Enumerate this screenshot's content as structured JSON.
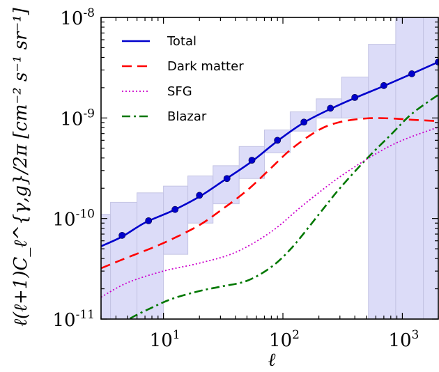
{
  "chart_data": {
    "type": "line",
    "xscale": "log",
    "yscale": "log",
    "xlim": [
      3,
      2000
    ],
    "ylim": [
      1e-11,
      1e-08
    ],
    "xlabel": "ℓ",
    "ylabel": "ℓ(ℓ+1)C_ℓ^{γ,g}/2π [cm⁻² s⁻¹ sr⁻¹]",
    "x_ticks": [
      {
        "base": "10",
        "exp": "1",
        "value": 10
      },
      {
        "base": "10",
        "exp": "2",
        "value": 100
      },
      {
        "base": "10",
        "exp": "3",
        "value": 1000
      }
    ],
    "y_ticks": [
      {
        "base": "10",
        "exp": "-11",
        "value": 1e-11
      },
      {
        "base": "10",
        "exp": "-10",
        "value": 1e-10
      },
      {
        "base": "10",
        "exp": "-9",
        "value": 1e-09
      },
      {
        "base": "10",
        "exp": "-8",
        "value": 1e-08
      }
    ],
    "legend_position": "top-left",
    "grid": false,
    "colors": {
      "total": "#0000cc",
      "dark_matter": "#ff0000",
      "sfg": "#cc00cc",
      "blazar": "#007700",
      "band": "#dcdcf8"
    },
    "series": [
      {
        "name": "Total",
        "style": "solid",
        "x": [
          3,
          4.5,
          7,
          12,
          20,
          33,
          55,
          90,
          150,
          250,
          400,
          700,
          1200,
          2000
        ],
        "y": [
          5.3e-11,
          6.6e-11,
          9.1e-11,
          1.2e-10,
          1.65e-10,
          2.45e-10,
          3.7e-10,
          5.9e-10,
          9e-10,
          1.23e-09,
          1.58e-09,
          2.08e-09,
          2.75e-09,
          3.6e-09
        ]
      },
      {
        "name": "Dark matter",
        "style": "dashed",
        "x": [
          3,
          5,
          8,
          12,
          20,
          30,
          50,
          80,
          120,
          200,
          300,
          500,
          800,
          1200,
          2000
        ],
        "y": [
          3.2e-11,
          4.1e-11,
          5.1e-11,
          6.3e-11,
          8.6e-11,
          1.2e-10,
          1.9e-10,
          3.2e-10,
          5e-10,
          7.6e-10,
          9.1e-10,
          9.9e-10,
          9.9e-10,
          9.6e-10,
          9.3e-10
        ]
      },
      {
        "name": "SFG",
        "style": "dotted",
        "x": [
          3,
          5,
          10,
          20,
          40,
          80,
          150,
          300,
          600,
          1000,
          2000
        ],
        "y": [
          1.65e-11,
          2.3e-11,
          3e-11,
          3.6e-11,
          4.6e-11,
          7.4e-11,
          1.38e-10,
          2.6e-10,
          4.4e-10,
          6e-10,
          8.1e-10
        ]
      },
      {
        "name": "Blazar",
        "style": "dashdot",
        "x": [
          3,
          5,
          8,
          12,
          20,
          30,
          50,
          80,
          120,
          200,
          300,
          500,
          800,
          1200,
          2000
        ],
        "y": [
          6.5e-12,
          9.8e-12,
          1.3e-11,
          1.6e-11,
          1.9e-11,
          2.1e-11,
          2.4e-11,
          3.3e-11,
          5.2e-11,
          1.1e-10,
          2e-10,
          3.9e-10,
          6.8e-10,
          1.1e-09,
          1.7e-09
        ]
      }
    ],
    "total_markers": {
      "x": [
        4.5,
        7.5,
        12.5,
        20,
        34,
        55,
        90,
        150,
        250,
        400,
        700,
        1200,
        2000
      ],
      "y": [
        6.8e-11,
        9.5e-11,
        1.23e-10,
        1.7e-10,
        2.5e-10,
        3.8e-10,
        6e-10,
        9.1e-10,
        1.25e-09,
        1.6e-09,
        2.1e-09,
        2.75e-09,
        3.6e-09
      ]
    },
    "error_band": [
      {
        "x0": 3.0,
        "x1": 3.6,
        "y0": 1e-11,
        "y1": 1.1e-10
      },
      {
        "x0": 3.6,
        "x1": 6,
        "y0": 1e-11,
        "y1": 1.45e-10
      },
      {
        "x0": 6,
        "x1": 10,
        "y0": 1e-11,
        "y1": 1.8e-10
      },
      {
        "x0": 10,
        "x1": 16,
        "y0": 4.4e-11,
        "y1": 2.1e-10
      },
      {
        "x0": 16,
        "x1": 26,
        "y0": 9e-11,
        "y1": 2.65e-10
      },
      {
        "x0": 26,
        "x1": 43,
        "y0": 1.4e-10,
        "y1": 3.35e-10
      },
      {
        "x0": 43,
        "x1": 70,
        "y0": 2.5e-10,
        "y1": 5.2e-10
      },
      {
        "x0": 70,
        "x1": 115,
        "y0": 4.5e-10,
        "y1": 7.6e-10
      },
      {
        "x0": 115,
        "x1": 190,
        "y0": 7.4e-10,
        "y1": 1.15e-09
      },
      {
        "x0": 190,
        "x1": 310,
        "y0": 1e-09,
        "y1": 1.55e-09
      },
      {
        "x0": 310,
        "x1": 520,
        "y0": 1e-09,
        "y1": 2.55e-09
      },
      {
        "x0": 520,
        "x1": 880,
        "y0": 1e-11,
        "y1": 5.4e-09
      },
      {
        "x0": 880,
        "x1": 1500,
        "y0": 1e-11,
        "y1": 1e-08
      },
      {
        "x0": 1500,
        "x1": 2000,
        "y0": 1e-11,
        "y1": 1e-08
      }
    ]
  }
}
